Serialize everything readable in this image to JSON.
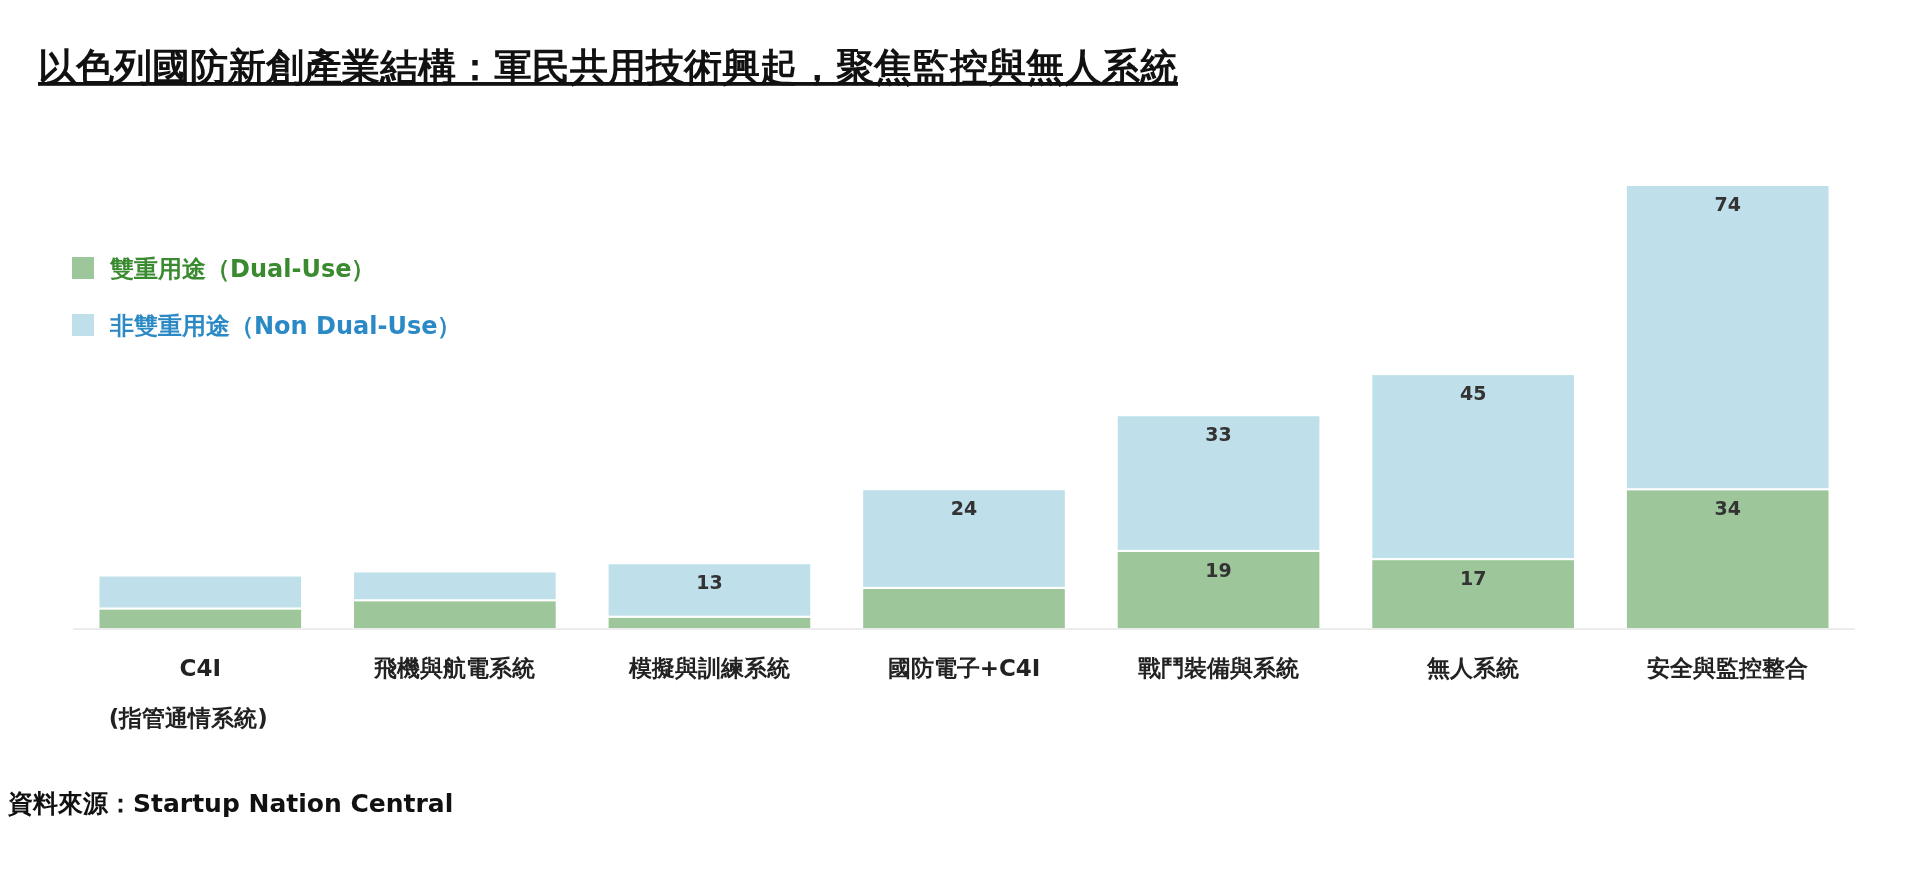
{
  "chart_data": {
    "type": "bar",
    "title": "以色列國防新創產業結構：軍民共用技術興起，聚焦監控與無人系統",
    "categories": [
      "C4I\n(指管通情系統)",
      "飛機與航電系統",
      "模擬與訓練系統",
      "國防電子+C4I",
      "戰鬥裝備與系統",
      "無人系統",
      "安全與監控整合"
    ],
    "stacked": true,
    "legend": "top left",
    "series": [
      {
        "name": "雙重用途（Dual-Use）",
        "color": "#9dc79a",
        "values": [
          5,
          7,
          3,
          10,
          19,
          17,
          34
        ],
        "value_labels": [
          null,
          null,
          null,
          null,
          "19",
          "17",
          "34"
        ]
      },
      {
        "name": "非雙重用途（Non Dual-Use）",
        "color": "#bfe0ea",
        "values": [
          8,
          7,
          13,
          24,
          33,
          45,
          74
        ],
        "value_labels": [
          null,
          null,
          "13",
          "24",
          "33",
          "45",
          "74"
        ]
      }
    ],
    "annotations": [
      "資料來源：Startup Nation Central"
    ]
  }
}
